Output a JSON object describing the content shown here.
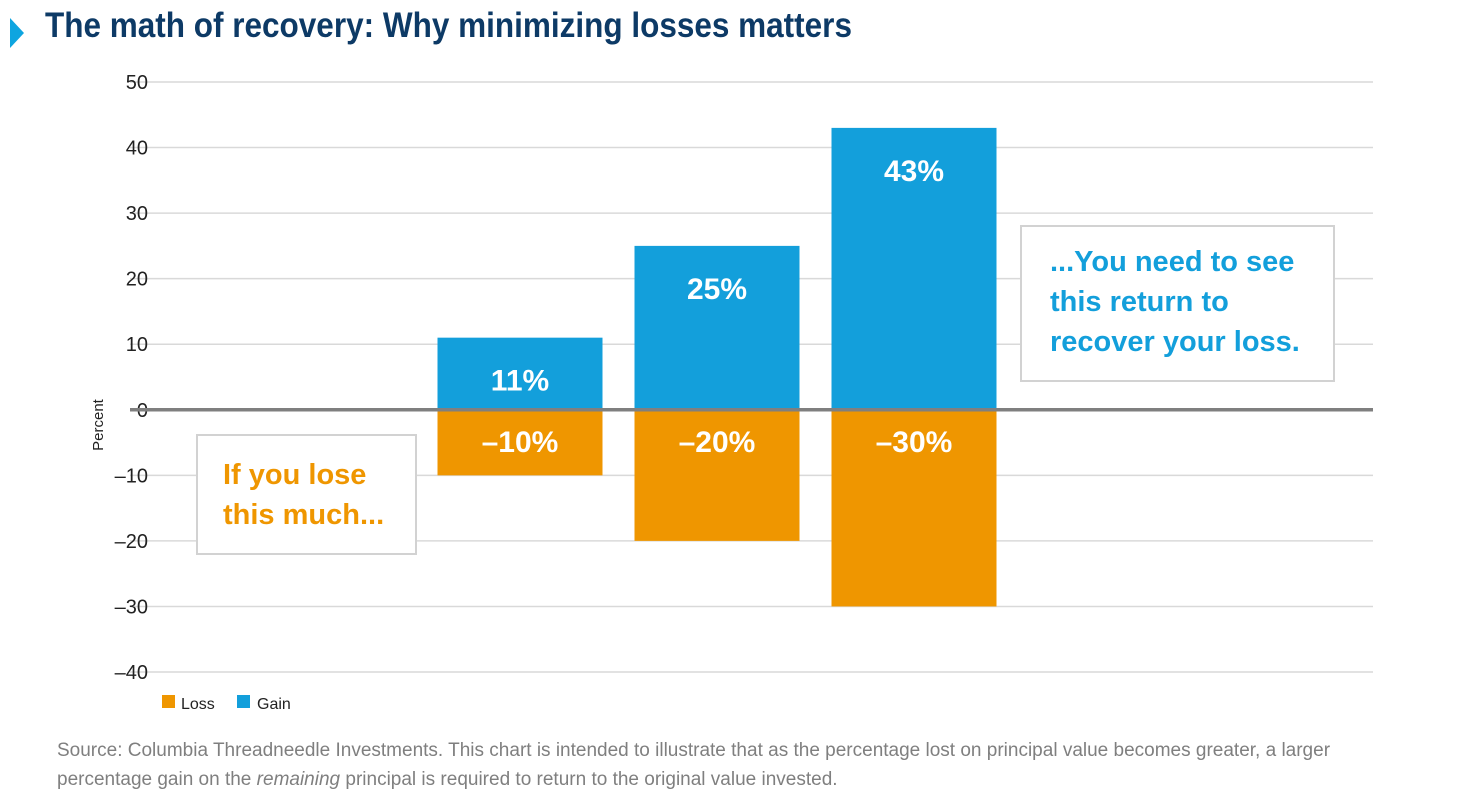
{
  "title": "The math of recovery: Why minimizing losses matters",
  "colors": {
    "loss": "#ef9600",
    "gain": "#139fdb",
    "title": "#0d3a66",
    "grid": "#d9d9d9",
    "zero_line": "#7f7f7f",
    "axis_text": "#222222",
    "note_text": "#7f7f7f"
  },
  "chart_data": {
    "type": "bar",
    "stacked": true,
    "categories": [
      "",
      "",
      "",
      ""
    ],
    "series": [
      {
        "name": "Loss",
        "values": [
          null,
          -10,
          -20,
          -30
        ],
        "labels": [
          "",
          "–10%",
          "–20%",
          "–30%"
        ]
      },
      {
        "name": "Gain",
        "values": [
          null,
          11,
          25,
          43
        ],
        "labels": [
          "",
          "11%",
          "25%",
          "43%"
        ]
      }
    ],
    "ylabel": "Percent",
    "ylim": [
      -40,
      50
    ],
    "yticks": [
      50,
      40,
      30,
      20,
      10,
      0,
      -10,
      -20,
      -30,
      -40
    ],
    "ytick_labels": [
      "50",
      "40",
      "30",
      "20",
      "10",
      "0",
      "–10",
      "–20",
      "–30",
      "–40"
    ],
    "grid": true,
    "legend": [
      "Loss",
      "Gain"
    ],
    "legend_position": "bottom-left",
    "annotations": [
      {
        "id": "loss_callout",
        "lines": [
          "If you lose",
          "this much..."
        ]
      },
      {
        "id": "gain_callout",
        "lines": [
          "...You need to see",
          "this return to",
          "recover your loss."
        ]
      }
    ]
  },
  "source_note": {
    "prefix": "Source: Columbia Threadneedle Investments. This chart is intended to illustrate that as the percentage lost on principal value becomes greater, a larger percentage gain on the ",
    "emphasis": "remaining",
    "suffix": " principal is required to return to the original value invested."
  }
}
